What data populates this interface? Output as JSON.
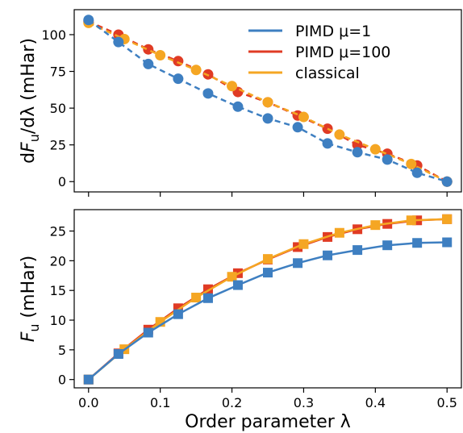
{
  "chart_data": [
    {
      "type": "line",
      "panel": "top",
      "ylabel_prefix": "d",
      "ylabel_var": "F",
      "ylabel_sub": "u",
      "ylabel_suffix": "/dλ (mHar)",
      "xlabel": "",
      "xlim": [
        -0.02,
        0.52
      ],
      "ylim": [
        -7,
        117
      ],
      "xticks": [
        0.0,
        0.1,
        0.2,
        0.3,
        0.4,
        0.5
      ],
      "xtick_labels": [
        "",
        "",
        "",
        "",
        "",
        ""
      ],
      "yticks": [
        0,
        25,
        50,
        75,
        100
      ],
      "ytick_labels": [
        "0",
        "25",
        "50",
        "75",
        "100"
      ],
      "marker": "circle",
      "linestyle": "dashed",
      "grid": false,
      "legend": {
        "placement": "top-right",
        "entries": [
          {
            "label": "PIMD μ=1",
            "color": "#3e7fc1"
          },
          {
            "label": "PIMD μ=100",
            "color": "#e03b24"
          },
          {
            "label": "classical",
            "color": "#f5a623"
          }
        ]
      },
      "series": [
        {
          "name": "PIMD μ=100",
          "color": "#e03b24",
          "x": [
            0.0,
            0.0417,
            0.0833,
            0.125,
            0.1667,
            0.2083,
            0.25,
            0.2917,
            0.3333,
            0.375,
            0.4167,
            0.4583,
            0.5
          ],
          "y": [
            109,
            100,
            90,
            82,
            73,
            61,
            54,
            45,
            36,
            25,
            19,
            11,
            0
          ]
        },
        {
          "name": "classical",
          "color": "#f5a623",
          "x": [
            0.0,
            0.05,
            0.1,
            0.15,
            0.2,
            0.25,
            0.3,
            0.35,
            0.4,
            0.45,
            0.5
          ],
          "y": [
            108,
            97,
            86,
            76,
            65,
            54,
            44,
            32,
            22,
            12,
            0
          ]
        },
        {
          "name": "PIMD μ=1",
          "color": "#3e7fc1",
          "x": [
            0.0,
            0.0417,
            0.0833,
            0.125,
            0.1667,
            0.2083,
            0.25,
            0.2917,
            0.3333,
            0.375,
            0.4167,
            0.4583,
            0.5
          ],
          "y": [
            110,
            95,
            80,
            70,
            60,
            51,
            43,
            37,
            26,
            20,
            15,
            6,
            0
          ]
        }
      ]
    },
    {
      "type": "line",
      "panel": "bottom",
      "ylabel_var": "F",
      "ylabel_sub": "u",
      "ylabel_suffix": " (mHar)",
      "xlabel": "Order parameter  λ",
      "xlim": [
        -0.02,
        0.52
      ],
      "ylim": [
        -1.4,
        28.6
      ],
      "xticks": [
        0.0,
        0.1,
        0.2,
        0.3,
        0.4,
        0.5
      ],
      "xtick_labels": [
        "0.0",
        "0.1",
        "0.2",
        "0.3",
        "0.4",
        "0.5"
      ],
      "yticks": [
        0,
        5,
        10,
        15,
        20,
        25
      ],
      "ytick_labels": [
        "0",
        "5",
        "10",
        "15",
        "20",
        "25"
      ],
      "marker": "square",
      "linestyle": "solid",
      "grid": false,
      "series": [
        {
          "name": "PIMD μ=100",
          "color": "#e03b24",
          "x": [
            0.0,
            0.0417,
            0.0833,
            0.125,
            0.1667,
            0.2083,
            0.25,
            0.2917,
            0.3333,
            0.375,
            0.4167,
            0.4583,
            0.5
          ],
          "y": [
            0,
            4.4,
            8.4,
            12.0,
            15.2,
            17.9,
            20.2,
            22.3,
            24.0,
            25.3,
            26.2,
            26.8,
            27.0
          ]
        },
        {
          "name": "classical",
          "color": "#f5a623",
          "x": [
            0.0,
            0.05,
            0.1,
            0.15,
            0.2,
            0.25,
            0.3,
            0.35,
            0.4,
            0.45,
            0.5
          ],
          "y": [
            0,
            5.1,
            9.7,
            13.8,
            17.3,
            20.3,
            22.8,
            24.7,
            26.0,
            26.8,
            27.0
          ]
        },
        {
          "name": "PIMD μ=1",
          "color": "#3e7fc1",
          "x": [
            0.0,
            0.0417,
            0.0833,
            0.125,
            0.1667,
            0.2083,
            0.25,
            0.2917,
            0.3333,
            0.375,
            0.4167,
            0.4583,
            0.5
          ],
          "y": [
            0,
            4.3,
            7.9,
            11.0,
            13.7,
            15.9,
            18.0,
            19.6,
            20.9,
            21.8,
            22.6,
            23.0,
            23.1
          ]
        }
      ]
    }
  ]
}
